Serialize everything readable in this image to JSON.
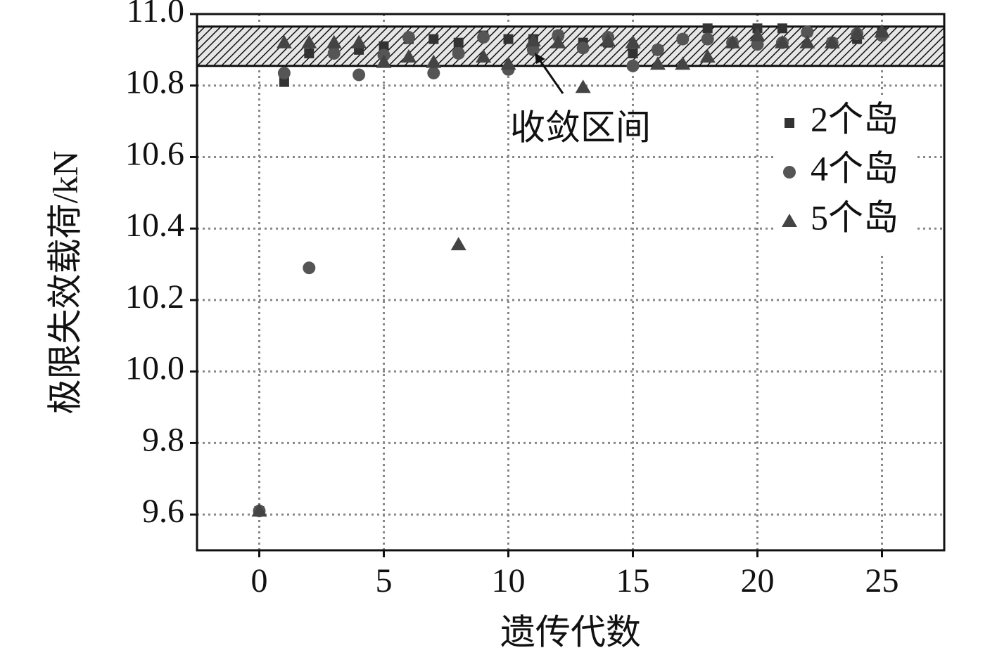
{
  "chart_data": {
    "type": "scatter",
    "x_label": "遗传代数",
    "y_label": "极限失效载荷/kN",
    "annotation": "收敛区间",
    "band_ylim": [
      10.855,
      10.965
    ],
    "x": [
      0,
      1,
      2,
      3,
      4,
      5,
      6,
      7,
      8,
      9,
      10,
      11,
      12,
      13,
      14,
      15,
      16,
      17,
      18,
      19,
      20,
      21,
      22,
      23,
      24,
      25
    ],
    "series": [
      {
        "name": "2个岛",
        "color": "#333333",
        "marker": "square",
        "values": [
          9.61,
          10.81,
          10.89,
          10.9,
          10.9,
          10.91,
          10.93,
          10.93,
          10.92,
          10.94,
          10.93,
          10.93,
          10.94,
          10.92,
          10.92,
          10.89,
          10.9,
          10.93,
          10.96,
          10.92,
          10.96,
          10.96,
          10.95,
          10.92,
          10.93,
          10.95
        ]
      },
      {
        "name": "4个岛",
        "color": "#555555",
        "marker": "circle",
        "values": [
          9.61,
          10.835,
          10.29,
          10.89,
          10.83,
          10.885,
          10.935,
          10.835,
          10.89,
          10.935,
          10.845,
          10.9,
          10.94,
          10.905,
          10.935,
          10.855,
          10.9,
          10.93,
          10.93,
          10.92,
          10.915,
          10.92,
          10.95,
          10.92,
          10.945,
          10.94
        ]
      },
      {
        "name": "5个岛",
        "color": "#444444",
        "marker": "triangle",
        "values": [
          9.61,
          10.92,
          10.92,
          10.92,
          10.92,
          10.865,
          10.88,
          10.865,
          10.355,
          10.88,
          10.86,
          10.925,
          10.92,
          10.795,
          10.925,
          10.92,
          10.86,
          10.86,
          10.88,
          10.92,
          10.94,
          10.92,
          10.92,
          10.92,
          10.945,
          10.95
        ]
      }
    ],
    "xlim": [
      -2.5,
      27.5
    ],
    "ylim": [
      9.5,
      11.0
    ],
    "xticks": [
      0,
      5,
      10,
      15,
      20,
      25
    ],
    "yticks": [
      9.6,
      9.8,
      {
        "value": 10,
        "label": "10.0"
      },
      10.2,
      10.4,
      10.6,
      10.8,
      {
        "value": 11,
        "label": "11.0"
      }
    ],
    "grid": true,
    "legend": "upper right"
  }
}
